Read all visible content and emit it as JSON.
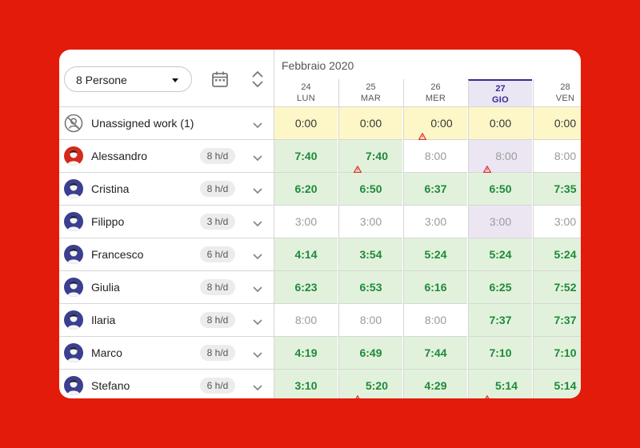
{
  "toolbar": {
    "people_select": "8 Persone"
  },
  "calendar": {
    "month": "Febbraio 2020",
    "days": [
      {
        "num": "24",
        "weekday": "LUN"
      },
      {
        "num": "25",
        "weekday": "MAR"
      },
      {
        "num": "26",
        "weekday": "MER"
      },
      {
        "num": "27",
        "weekday": "GIO",
        "today": true
      },
      {
        "num": "28",
        "weekday": "VEN"
      }
    ]
  },
  "rows": [
    {
      "name": "Unassigned work (1)",
      "badge": "",
      "cells": [
        {
          "v": "0:00",
          "s": "yellow"
        },
        {
          "v": "0:00",
          "s": "yellow"
        },
        {
          "v": "0:00",
          "s": "yellow",
          "warn": true
        },
        {
          "v": "0:00",
          "s": "yellow"
        },
        {
          "v": "0:00",
          "s": "yellow"
        }
      ]
    },
    {
      "name": "Alessandro",
      "badge": "8 h/d",
      "avatar": "#d42a1c",
      "cells": [
        {
          "v": "7:40",
          "s": "green"
        },
        {
          "v": "7:40",
          "s": "green",
          "warn": true
        },
        {
          "v": "8:00",
          "s": "white"
        },
        {
          "v": "8:00",
          "s": "purple",
          "warn": true
        },
        {
          "v": "8:00",
          "s": "white"
        }
      ]
    },
    {
      "name": "Cristina",
      "badge": "8 h/d",
      "avatar": "#3b3f8f",
      "cells": [
        {
          "v": "6:20",
          "s": "green"
        },
        {
          "v": "6:50",
          "s": "green"
        },
        {
          "v": "6:37",
          "s": "green"
        },
        {
          "v": "6:50",
          "s": "green"
        },
        {
          "v": "7:35",
          "s": "green"
        }
      ]
    },
    {
      "name": "Filippo",
      "badge": "3 h/d",
      "avatar": "#3b3f8f",
      "cells": [
        {
          "v": "3:00",
          "s": "white"
        },
        {
          "v": "3:00",
          "s": "white"
        },
        {
          "v": "3:00",
          "s": "white"
        },
        {
          "v": "3:00",
          "s": "purple"
        },
        {
          "v": "3:00",
          "s": "white"
        }
      ]
    },
    {
      "name": "Francesco",
      "badge": "6 h/d",
      "avatar": "#3b3f8f",
      "cells": [
        {
          "v": "4:14",
          "s": "green"
        },
        {
          "v": "3:54",
          "s": "green"
        },
        {
          "v": "5:24",
          "s": "green"
        },
        {
          "v": "5:24",
          "s": "green"
        },
        {
          "v": "5:24",
          "s": "green"
        }
      ]
    },
    {
      "name": "Giulia",
      "badge": "8 h/d",
      "avatar": "#3b3f8f",
      "cells": [
        {
          "v": "6:23",
          "s": "green"
        },
        {
          "v": "6:53",
          "s": "green"
        },
        {
          "v": "6:16",
          "s": "green"
        },
        {
          "v": "6:25",
          "s": "green"
        },
        {
          "v": "7:52",
          "s": "green"
        }
      ]
    },
    {
      "name": "Ilaria",
      "badge": "8 h/d",
      "avatar": "#3b3f8f",
      "cells": [
        {
          "v": "8:00",
          "s": "white"
        },
        {
          "v": "8:00",
          "s": "white"
        },
        {
          "v": "8:00",
          "s": "white"
        },
        {
          "v": "7:37",
          "s": "green"
        },
        {
          "v": "7:37",
          "s": "green"
        }
      ]
    },
    {
      "name": "Marco",
      "badge": "8 h/d",
      "avatar": "#3b3f8f",
      "cells": [
        {
          "v": "4:19",
          "s": "green"
        },
        {
          "v": "6:49",
          "s": "green"
        },
        {
          "v": "7:44",
          "s": "green"
        },
        {
          "v": "7:10",
          "s": "green"
        },
        {
          "v": "7:10",
          "s": "green"
        }
      ]
    },
    {
      "name": "Stefano",
      "badge": "6 h/d",
      "avatar": "#3b3f8f",
      "cells": [
        {
          "v": "3:10",
          "s": "green"
        },
        {
          "v": "5:20",
          "s": "green",
          "warn": true
        },
        {
          "v": "4:29",
          "s": "green"
        },
        {
          "v": "5:14",
          "s": "green",
          "warn": true
        },
        {
          "v": "5:14",
          "s": "green"
        }
      ]
    }
  ]
}
